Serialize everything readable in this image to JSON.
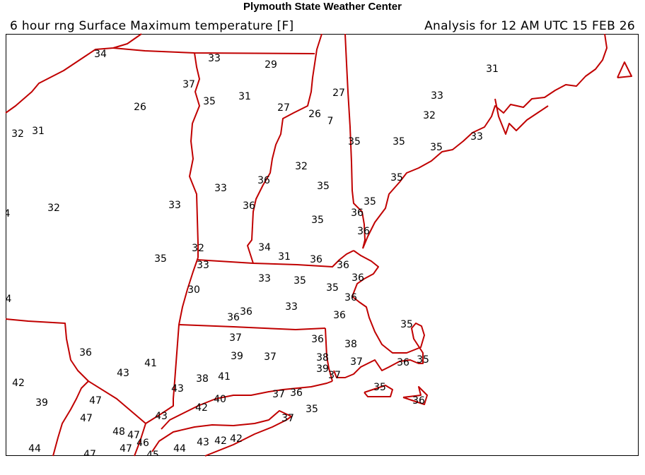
{
  "header": {
    "title": "Plymouth State Weather Center",
    "product": "6 hour rng Surface Maximum temperature [F]",
    "valid": "Analysis for 12 AM UTC 15 FEB 26"
  },
  "map": {
    "border_color": "#c00000",
    "text_color": "#000000",
    "station_values": [
      "34",
      "33",
      "29",
      "37",
      "35",
      "31",
      "27",
      "26",
      "7",
      "27",
      "26",
      "32",
      "31",
      "35",
      "35",
      "35",
      "33",
      "31",
      "33",
      "32",
      "32",
      "36",
      "35",
      "33",
      "33",
      "36",
      "32",
      "4",
      "35",
      "35",
      "36",
      "35",
      "36",
      "35",
      "32",
      "33",
      "34",
      "31",
      "36",
      "36",
      "36",
      "33",
      "35",
      "35",
      "36",
      "30",
      "4",
      "33",
      "36",
      "36",
      "36",
      "35",
      "37",
      "36",
      "38",
      "36",
      "39",
      "37",
      "38",
      "43",
      "41",
      "37",
      "36",
      "35",
      "39",
      "37",
      "38",
      "41",
      "42",
      "43",
      "35",
      "37",
      "36",
      "40",
      "39",
      "47",
      "42",
      "35",
      "36",
      "43",
      "37",
      "47",
      "48",
      "47",
      "46",
      "44",
      "43",
      "42",
      "42",
      "44",
      "47",
      "47",
      "45"
    ]
  }
}
